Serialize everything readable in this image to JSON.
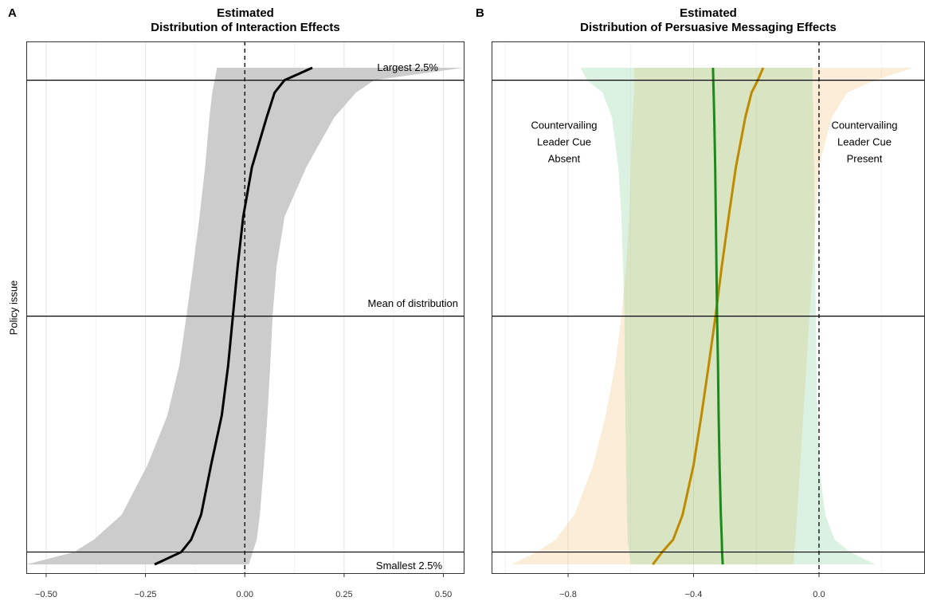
{
  "chart_data": [
    {
      "type": "ribbon",
      "panel_label": "A",
      "title": [
        "Estimated",
        "Distribution of Interaction Effects"
      ],
      "ylabel": "Policy issue",
      "y": [
        0,
        2.5,
        5,
        10,
        20,
        30,
        40,
        50,
        60,
        70,
        80,
        90,
        95,
        97.5,
        100
      ],
      "series": [
        {
          "color": "#000000",
          "band_color": "#cccccc",
          "band_opacity": 1,
          "values": [
            -0.227,
            -0.16,
            -0.135,
            -0.11,
            -0.085,
            -0.058,
            -0.042,
            -0.03,
            -0.018,
            -0.004,
            0.018,
            0.055,
            0.075,
            0.1,
            0.17
          ],
          "lower": [
            -0.55,
            -0.43,
            -0.38,
            -0.31,
            -0.245,
            -0.195,
            -0.165,
            -0.147,
            -0.13,
            -0.114,
            -0.1,
            -0.089,
            -0.082,
            -0.076,
            -0.07
          ],
          "upper": [
            0.01,
            0.02,
            0.03,
            0.038,
            0.048,
            0.057,
            0.064,
            0.07,
            0.08,
            0.1,
            0.155,
            0.225,
            0.28,
            0.326,
            0.55
          ]
        }
      ],
      "xlim": [
        -0.55,
        0.553
      ],
      "ylim": [
        -1.9,
        105.3
      ],
      "xticks": [
        {
          "value": -0.5,
          "label": "−0.50"
        },
        {
          "value": -0.25,
          "label": "−0.25"
        },
        {
          "value": 0,
          "label": "0.00"
        },
        {
          "value": 0.25,
          "label": "0.25"
        },
        {
          "value": 0.5,
          "label": "0.50"
        }
      ],
      "xminor": [
        -0.375,
        -0.125,
        0.125,
        0.375
      ],
      "vline": 0,
      "hlines": [
        {
          "value": 97.5,
          "label": "Largest 2.5%"
        },
        {
          "value": 50,
          "label": "Mean of distribution"
        },
        {
          "value": 2.5,
          "label": "Smallest 2.5%"
        }
      ]
    },
    {
      "type": "ribbon",
      "panel_label": "B",
      "title": [
        "Estimated",
        "Distribution of Persuasive Messaging Effects"
      ],
      "y": [
        0,
        2.5,
        5,
        10,
        20,
        30,
        40,
        50,
        60,
        70,
        80,
        90,
        95,
        97.5,
        100
      ],
      "series": [
        {
          "color": "#c08a00",
          "band_color": "#f0b860",
          "band_opacity": 0.25,
          "values": [
            -0.53,
            -0.5,
            -0.465,
            -0.435,
            -0.4,
            -0.375,
            -0.352,
            -0.33,
            -0.31,
            -0.288,
            -0.265,
            -0.235,
            -0.215,
            -0.195,
            -0.178
          ],
          "lower": [
            -0.98,
            -0.9,
            -0.84,
            -0.78,
            -0.72,
            -0.68,
            -0.65,
            -0.63,
            -0.615,
            -0.605,
            -0.6,
            -0.595,
            -0.59,
            -0.59,
            -0.59
          ],
          "upper": [
            -0.08,
            -0.08,
            -0.075,
            -0.07,
            -0.06,
            -0.05,
            -0.04,
            -0.03,
            -0.02,
            -0.01,
            0,
            0.04,
            0.09,
            0.18,
            0.3
          ]
        },
        {
          "color": "#1a8a1a",
          "band_color": "#5cc47a",
          "band_opacity": 0.22,
          "values": [
            -0.307,
            -0.309,
            -0.31,
            -0.313,
            -0.317,
            -0.32,
            -0.322,
            -0.325,
            -0.327,
            -0.329,
            -0.331,
            -0.334,
            -0.336,
            -0.337,
            -0.338
          ],
          "lower": [
            -0.6,
            -0.605,
            -0.61,
            -0.612,
            -0.615,
            -0.617,
            -0.62,
            -0.62,
            -0.625,
            -0.63,
            -0.64,
            -0.66,
            -0.69,
            -0.74,
            -0.76
          ],
          "upper": [
            0.18,
            0.1,
            0.05,
            0.02,
            0,
            -0.005,
            -0.008,
            -0.01,
            -0.012,
            -0.014,
            -0.016,
            -0.018,
            -0.02,
            -0.02,
            -0.02
          ]
        }
      ],
      "xlim": [
        -1.044,
        0.338
      ],
      "ylim": [
        -1.9,
        105.3
      ],
      "xticks": [
        {
          "value": -0.8,
          "label": "−0.8"
        },
        {
          "value": -0.4,
          "label": "−0.4"
        },
        {
          "value": 0,
          "label": "0.0"
        }
      ],
      "xminor": [
        -1.0,
        -0.6,
        -0.2,
        0.2
      ],
      "vline": 0,
      "hlines": [
        97.5,
        50,
        2.5
      ],
      "annotations": [
        {
          "lines": [
            "Countervailing",
            "Leader Cue",
            "Absent"
          ],
          "color": "#1a8a1a"
        },
        {
          "lines": [
            "Countervailing",
            "Leader Cue",
            "Present"
          ],
          "color": "#c08a00"
        }
      ]
    }
  ]
}
